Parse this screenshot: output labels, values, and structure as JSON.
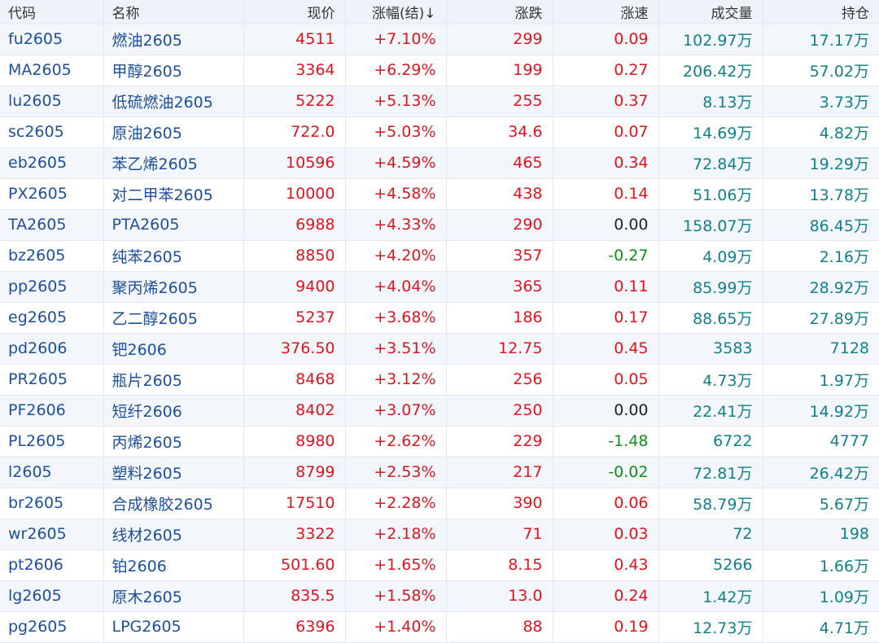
{
  "colors": {
    "up": "#e0141e",
    "down": "#138a1b",
    "flat": "#222222",
    "code": "#1d4f9c",
    "volume": "#11808a",
    "header_bg": "#eef3fa"
  },
  "columns": [
    {
      "key": "code",
      "label": "代码"
    },
    {
      "key": "name",
      "label": "名称"
    },
    {
      "key": "price",
      "label": "现价"
    },
    {
      "key": "change_pct",
      "label": "涨幅(结)↓"
    },
    {
      "key": "change",
      "label": "涨跌"
    },
    {
      "key": "speed",
      "label": "涨速"
    },
    {
      "key": "volume",
      "label": "成交量"
    },
    {
      "key": "open_interest",
      "label": "持仓"
    }
  ],
  "rows": [
    {
      "code": "fu2605",
      "name": "燃油2605",
      "price": "4511",
      "change_pct": "+7.10%",
      "change": "299",
      "speed": "0.09",
      "volume": "102.97万",
      "open_interest": "17.17万"
    },
    {
      "code": "MA2605",
      "name": "甲醇2605",
      "price": "3364",
      "change_pct": "+6.29%",
      "change": "199",
      "speed": "0.27",
      "volume": "206.42万",
      "open_interest": "57.02万"
    },
    {
      "code": "lu2605",
      "name": "低硫燃油2605",
      "price": "5222",
      "change_pct": "+5.13%",
      "change": "255",
      "speed": "0.37",
      "volume": "8.13万",
      "open_interest": "3.73万"
    },
    {
      "code": "sc2605",
      "name": "原油2605",
      "price": "722.0",
      "change_pct": "+5.03%",
      "change": "34.6",
      "speed": "0.07",
      "volume": "14.69万",
      "open_interest": "4.82万"
    },
    {
      "code": "eb2605",
      "name": "苯乙烯2605",
      "price": "10596",
      "change_pct": "+4.59%",
      "change": "465",
      "speed": "0.34",
      "volume": "72.84万",
      "open_interest": "19.29万"
    },
    {
      "code": "PX2605",
      "name": "对二甲苯2605",
      "price": "10000",
      "change_pct": "+4.58%",
      "change": "438",
      "speed": "0.14",
      "volume": "51.06万",
      "open_interest": "13.78万"
    },
    {
      "code": "TA2605",
      "name": "PTA2605",
      "price": "6988",
      "change_pct": "+4.33%",
      "change": "290",
      "speed": "0.00",
      "volume": "158.07万",
      "open_interest": "86.45万"
    },
    {
      "code": "bz2605",
      "name": "纯苯2605",
      "price": "8850",
      "change_pct": "+4.20%",
      "change": "357",
      "speed": "-0.27",
      "volume": "4.09万",
      "open_interest": "2.16万"
    },
    {
      "code": "pp2605",
      "name": "聚丙烯2605",
      "price": "9400",
      "change_pct": "+4.04%",
      "change": "365",
      "speed": "0.11",
      "volume": "85.99万",
      "open_interest": "28.92万"
    },
    {
      "code": "eg2605",
      "name": "乙二醇2605",
      "price": "5237",
      "change_pct": "+3.68%",
      "change": "186",
      "speed": "0.17",
      "volume": "88.65万",
      "open_interest": "27.89万"
    },
    {
      "code": "pd2606",
      "name": "钯2606",
      "price": "376.50",
      "change_pct": "+3.51%",
      "change": "12.75",
      "speed": "0.45",
      "volume": "3583",
      "open_interest": "7128"
    },
    {
      "code": "PR2605",
      "name": "瓶片2605",
      "price": "8468",
      "change_pct": "+3.12%",
      "change": "256",
      "speed": "0.05",
      "volume": "4.73万",
      "open_interest": "1.97万"
    },
    {
      "code": "PF2606",
      "name": "短纤2606",
      "price": "8402",
      "change_pct": "+3.07%",
      "change": "250",
      "speed": "0.00",
      "volume": "22.41万",
      "open_interest": "14.92万"
    },
    {
      "code": "PL2605",
      "name": "丙烯2605",
      "price": "8980",
      "change_pct": "+2.62%",
      "change": "229",
      "speed": "-1.48",
      "volume": "6722",
      "open_interest": "4777"
    },
    {
      "code": "l2605",
      "name": "塑料2605",
      "price": "8799",
      "change_pct": "+2.53%",
      "change": "217",
      "speed": "-0.02",
      "volume": "72.81万",
      "open_interest": "26.42万"
    },
    {
      "code": "br2605",
      "name": "合成橡胶2605",
      "price": "17510",
      "change_pct": "+2.28%",
      "change": "390",
      "speed": "0.06",
      "volume": "58.79万",
      "open_interest": "5.67万"
    },
    {
      "code": "wr2605",
      "name": "线材2605",
      "price": "3322",
      "change_pct": "+2.18%",
      "change": "71",
      "speed": "0.03",
      "volume": "72",
      "open_interest": "198"
    },
    {
      "code": "pt2606",
      "name": "铂2606",
      "price": "501.60",
      "change_pct": "+1.65%",
      "change": "8.15",
      "speed": "0.43",
      "volume": "5266",
      "open_interest": "1.66万"
    },
    {
      "code": "lg2605",
      "name": "原木2605",
      "price": "835.5",
      "change_pct": "+1.58%",
      "change": "13.0",
      "speed": "0.24",
      "volume": "1.42万",
      "open_interest": "1.09万"
    },
    {
      "code": "pg2605",
      "name": "LPG2605",
      "price": "6396",
      "change_pct": "+1.40%",
      "change": "88",
      "speed": "0.19",
      "volume": "12.73万",
      "open_interest": "4.71万"
    }
  ]
}
